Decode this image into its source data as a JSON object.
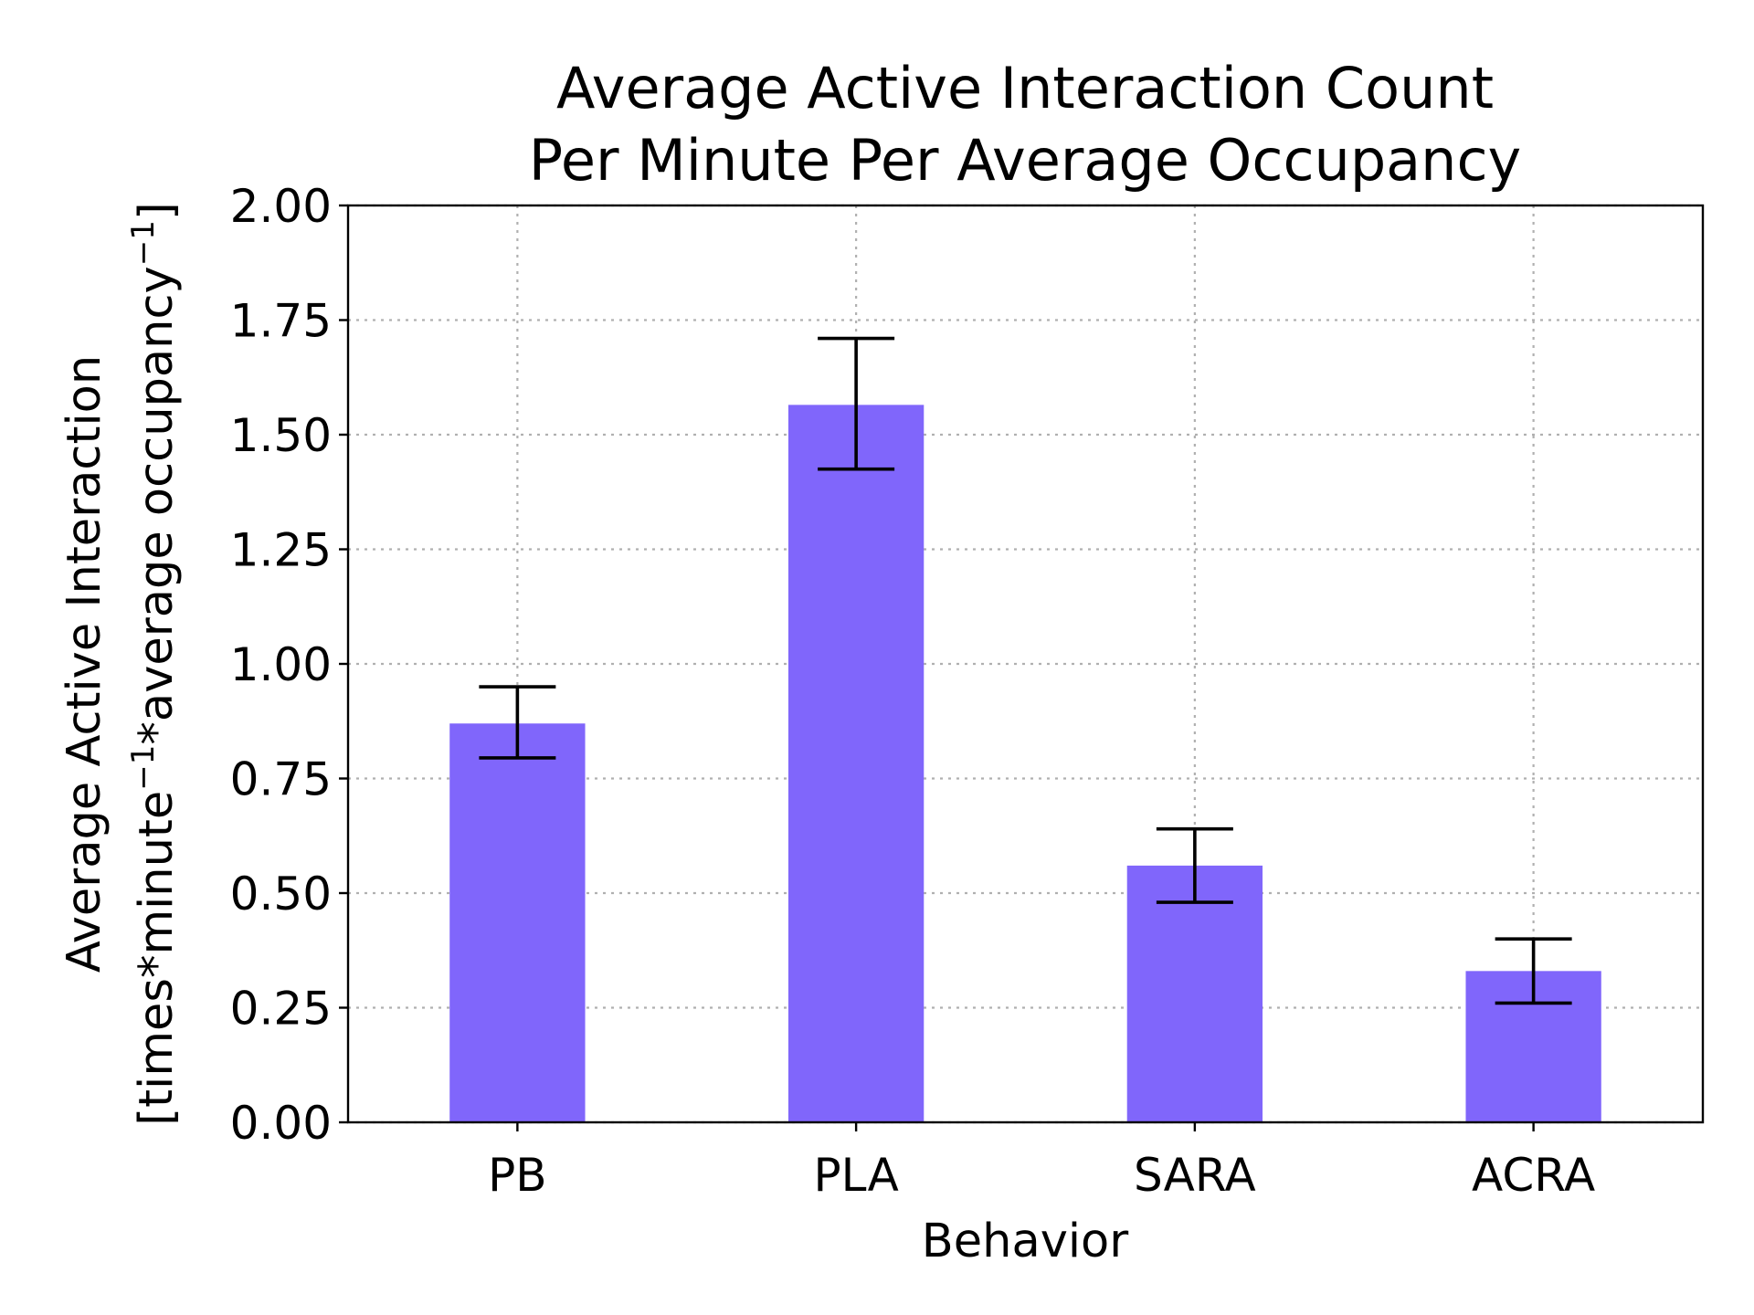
{
  "chart_data": {
    "type": "bar",
    "title_lines": [
      "Average Active Interaction Count",
      "Per Minute Per Average Occupancy"
    ],
    "xlabel": "Behavior",
    "ylabel_lines": [
      "Average Active Interaction",
      "[times*minute",
      "*average occupancy",
      "]"
    ],
    "ylabel_superscript": "−1",
    "categories": [
      "PB",
      "PLA",
      "SARA",
      "ACRA"
    ],
    "values": [
      0.87,
      1.565,
      0.56,
      0.33
    ],
    "error_low": [
      0.795,
      1.425,
      0.48,
      0.26
    ],
    "error_high": [
      0.95,
      1.71,
      0.64,
      0.4
    ],
    "ylim": [
      0,
      2.0
    ],
    "yticks": [
      0.0,
      0.25,
      0.5,
      0.75,
      1.0,
      1.25,
      1.5,
      1.75,
      2.0
    ],
    "ytick_labels": [
      "0.00",
      "0.25",
      "0.50",
      "0.75",
      "1.00",
      "1.25",
      "1.50",
      "1.75",
      "2.00"
    ],
    "bar_color": "#8066fb",
    "grid": true,
    "grid_style": "dotted"
  }
}
